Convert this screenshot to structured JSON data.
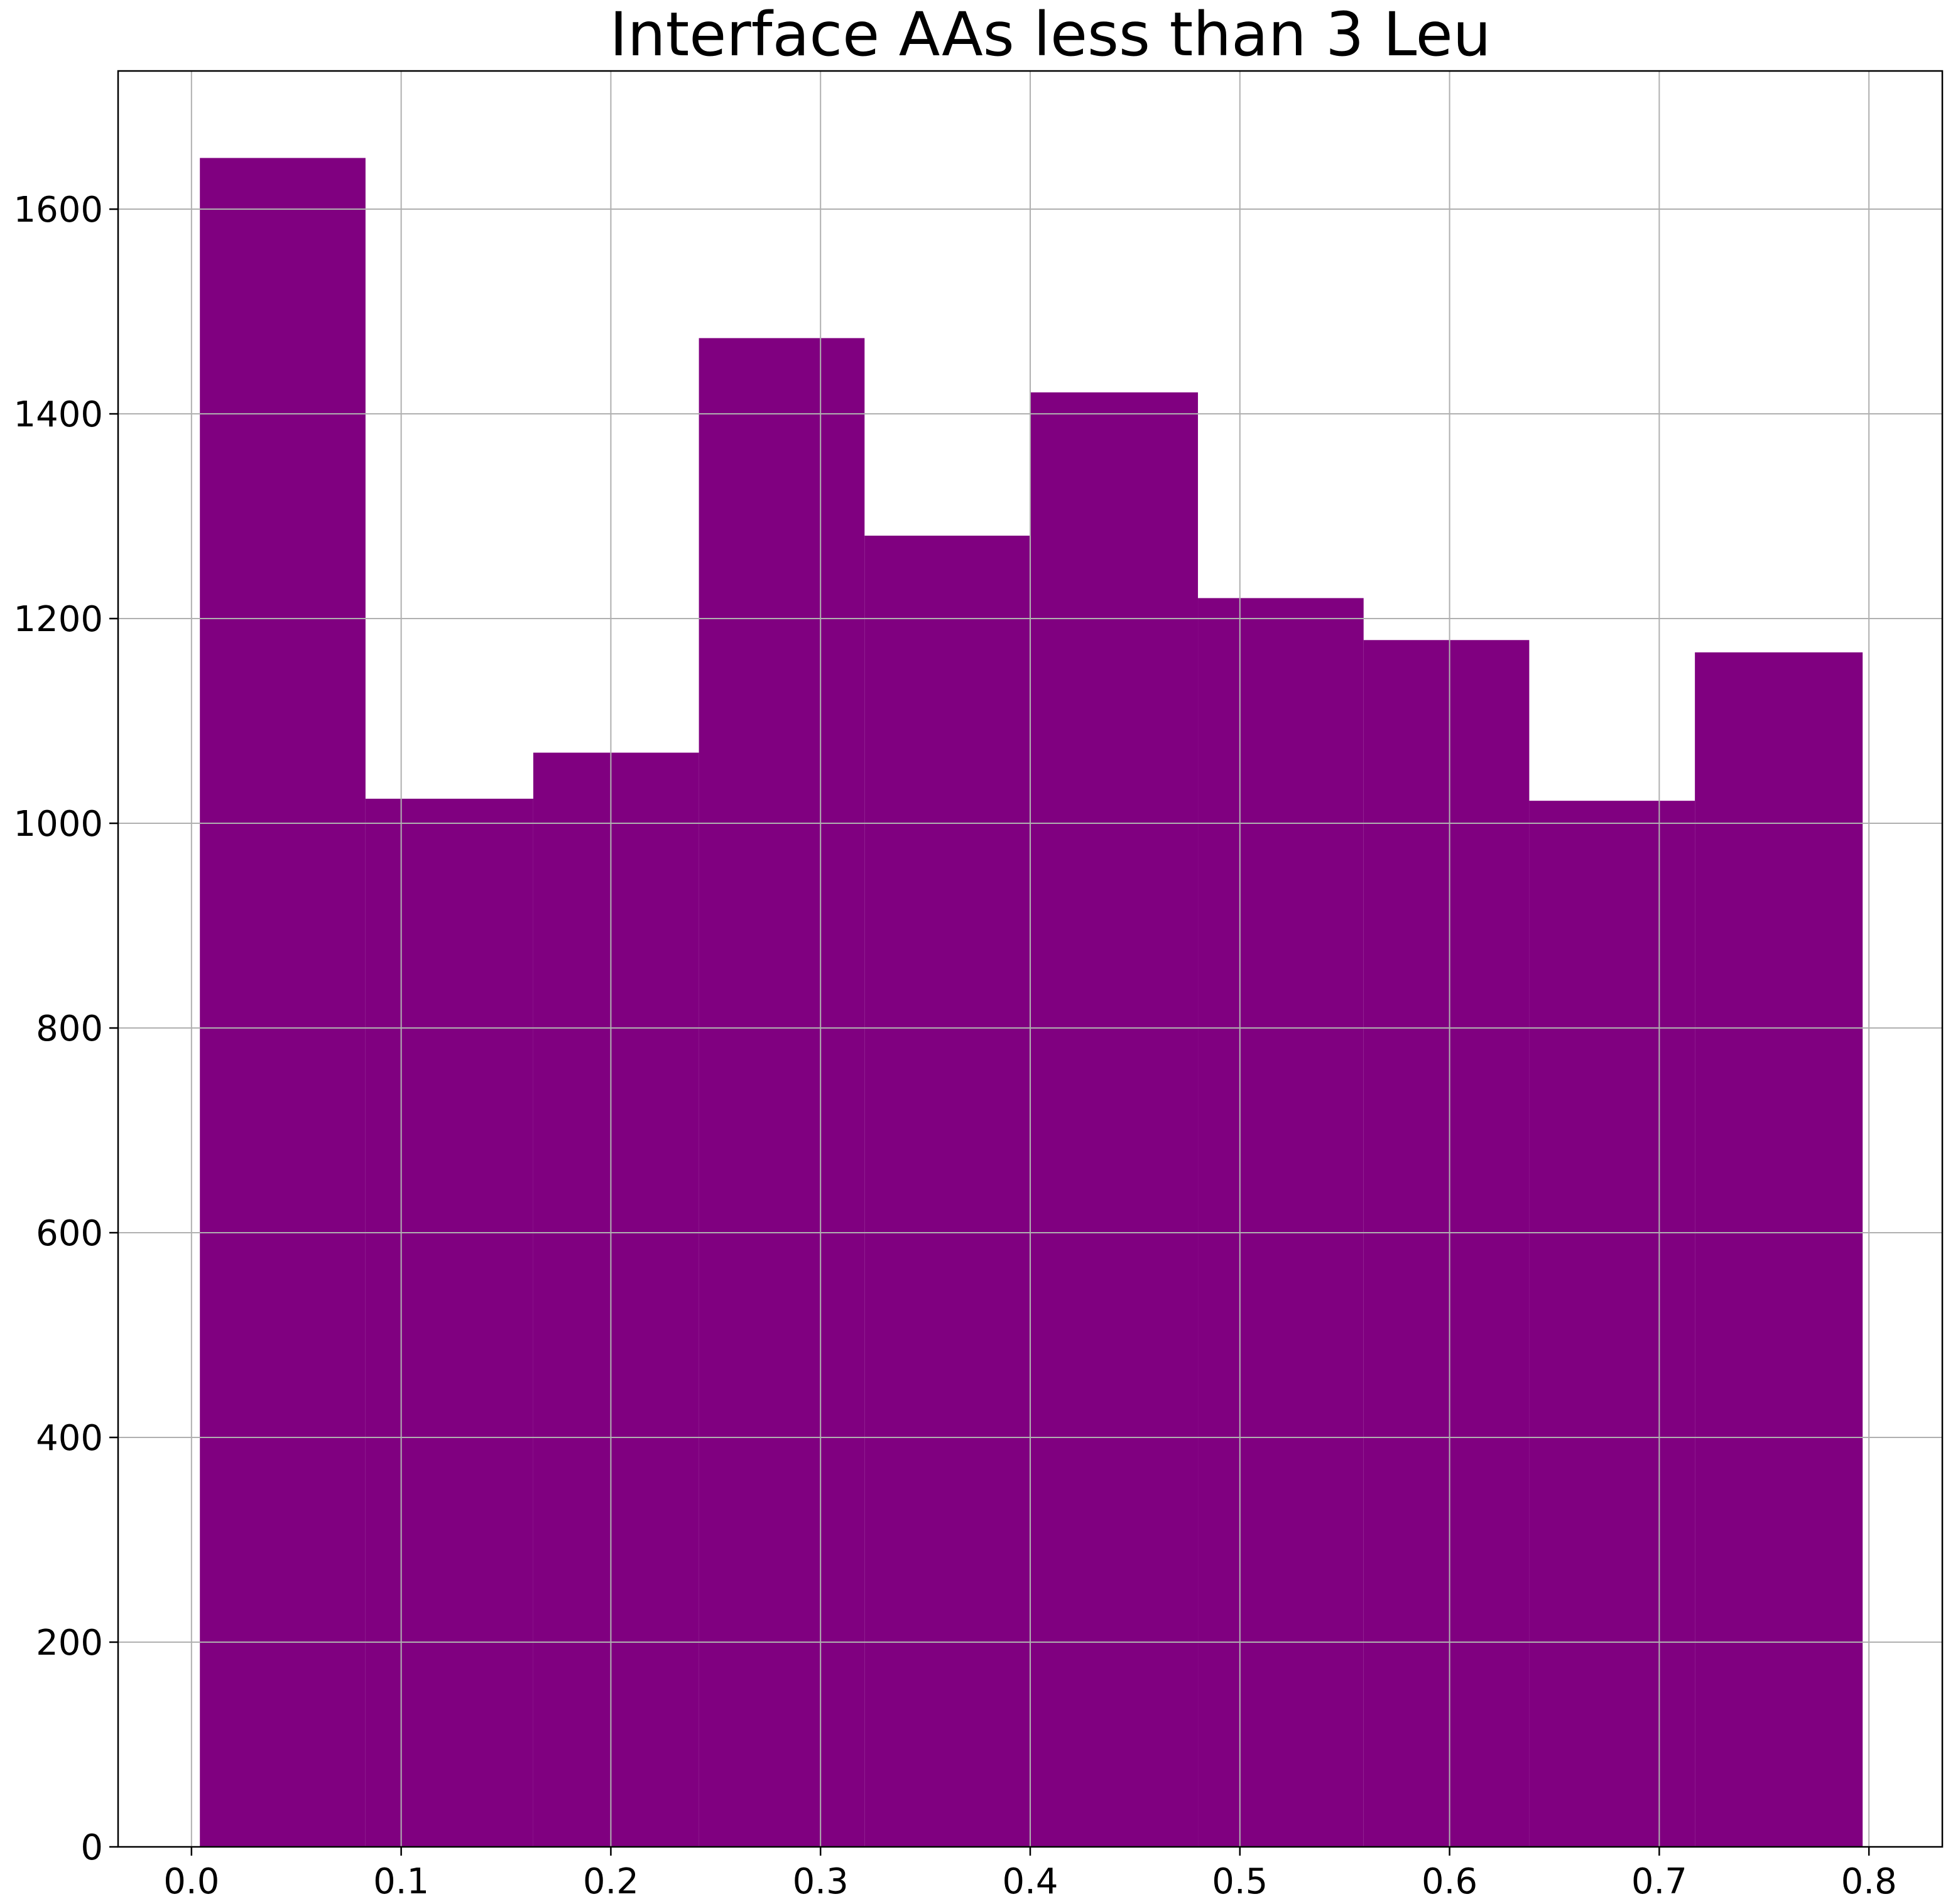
{
  "chart_data": {
    "type": "bar",
    "title": "Interface AAs less than 3 Leu",
    "xlabel": "",
    "ylabel": "",
    "xlim": [
      -0.035,
      0.835
    ],
    "ylim": [
      0,
      1735
    ],
    "x_ticks": [
      0.0,
      0.1,
      0.2,
      0.3,
      0.4,
      0.5,
      0.6,
      0.7,
      0.8
    ],
    "x_tick_labels": [
      "0.0",
      "0.1",
      "0.2",
      "0.3",
      "0.4",
      "0.5",
      "0.6",
      "0.7",
      "0.8"
    ],
    "y_ticks": [
      0,
      200,
      400,
      600,
      800,
      1000,
      1200,
      1400,
      1600
    ],
    "y_tick_labels": [
      "0",
      "200",
      "400",
      "600",
      "800",
      "1000",
      "1200",
      "1400",
      "1600"
    ],
    "grid": true,
    "bar_color": "#800080",
    "bins": [
      {
        "x_start": 0.004,
        "x_end": 0.083,
        "value": 1650
      },
      {
        "x_start": 0.083,
        "x_end": 0.163,
        "value": 1024
      },
      {
        "x_start": 0.163,
        "x_end": 0.242,
        "value": 1069
      },
      {
        "x_start": 0.242,
        "x_end": 0.321,
        "value": 1474
      },
      {
        "x_start": 0.321,
        "x_end": 0.4,
        "value": 1281
      },
      {
        "x_start": 0.4,
        "x_end": 0.48,
        "value": 1421
      },
      {
        "x_start": 0.48,
        "x_end": 0.559,
        "value": 1220
      },
      {
        "x_start": 0.559,
        "x_end": 0.638,
        "value": 1179
      },
      {
        "x_start": 0.638,
        "x_end": 0.717,
        "value": 1022
      },
      {
        "x_start": 0.717,
        "x_end": 0.797,
        "value": 1167
      }
    ]
  }
}
